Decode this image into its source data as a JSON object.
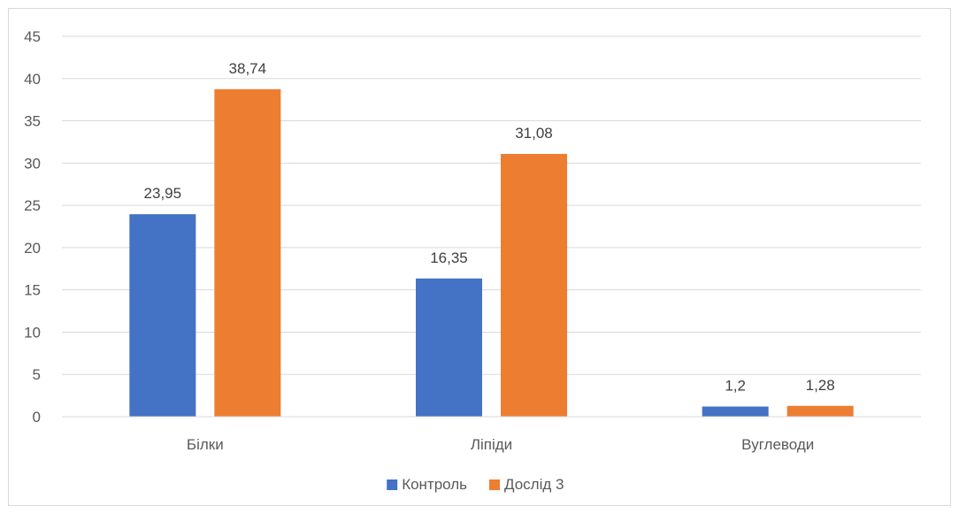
{
  "chart_data": {
    "type": "bar",
    "categories": [
      "Білки",
      "Ліпіди",
      "Вуглеводи"
    ],
    "series": [
      {
        "name": "Контроль",
        "values": [
          23.95,
          16.35,
          1.2
        ],
        "labels": [
          "23,95",
          "16,35",
          "1,2"
        ],
        "color": "#4472C4"
      },
      {
        "name": "Дослід 3",
        "values": [
          38.74,
          31.08,
          1.28
        ],
        "labels": [
          "38,74",
          "31,08",
          "1,28"
        ],
        "color": "#ED7D31"
      }
    ],
    "ylim": [
      0,
      45
    ],
    "yticks": [
      0,
      5,
      10,
      15,
      20,
      25,
      30,
      35,
      40,
      45
    ],
    "grid": true,
    "legend_position": "bottom",
    "title": "",
    "xlabel": "",
    "ylabel": ""
  }
}
